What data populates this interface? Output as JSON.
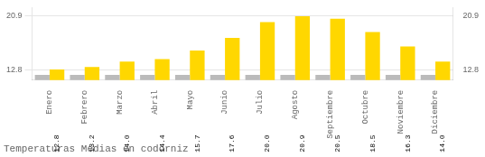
{
  "chart_data": {
    "type": "bar",
    "title": "Temperaturas Medias en codorniz",
    "categories": [
      "Enero",
      "Febrero",
      "Marzo",
      "Abril",
      "Mayo",
      "Junio",
      "Julio",
      "Agosto",
      "Septiembre",
      "Octubre",
      "Noviembre",
      "Diciembre"
    ],
    "series": [
      {
        "color": "#BBBBBB",
        "values": [
          12.0,
          12.0,
          12.0,
          12.0,
          12.0,
          12.0,
          12.0,
          12.0,
          12.0,
          12.0,
          12.0,
          12.0
        ]
      },
      {
        "color": "#FFD700",
        "values": [
          12.8,
          13.2,
          14.0,
          14.4,
          15.7,
          17.6,
          20.0,
          20.9,
          20.5,
          18.5,
          16.3,
          14.0
        ],
        "value_labels": [
          "12.8",
          "13.2",
          "14.0",
          "14.4",
          "15.7",
          "17.6",
          "20.0",
          "20.9",
          "20.5",
          "18.5",
          "16.3",
          "14.0"
        ],
        "data_labels": true
      }
    ],
    "ylim": [
      11.2,
      22.2
    ],
    "yticks": [
      12.8,
      20.9
    ],
    "y2lim": [
      11.2,
      22.2
    ],
    "y2ticks": [
      12.8,
      20.9
    ],
    "grid": true
  }
}
